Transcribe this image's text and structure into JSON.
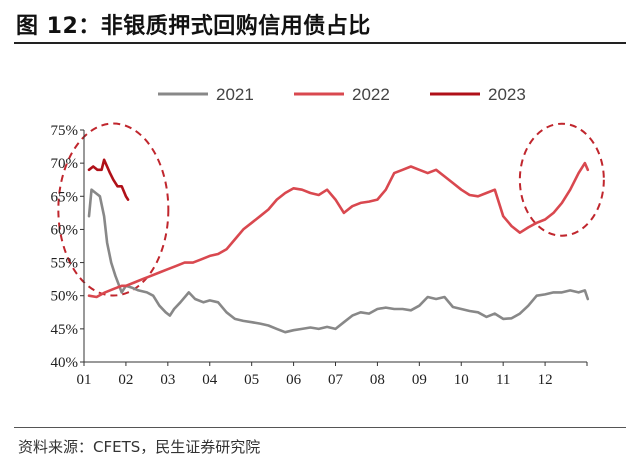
{
  "header": {
    "title": "图 12：非银质押式回购信用债占比"
  },
  "footer": {
    "source": "资料来源：CFETS，民生证券研究院"
  },
  "chart_data": {
    "type": "line",
    "xlabel": "",
    "ylabel": "",
    "x_ticks": [
      "01",
      "02",
      "03",
      "04",
      "05",
      "06",
      "07",
      "08",
      "09",
      "10",
      "11",
      "12"
    ],
    "xlim": [
      1,
      13
    ],
    "ylim": [
      40,
      75
    ],
    "y_ticks": [
      40,
      45,
      50,
      55,
      60,
      65,
      70,
      75
    ],
    "y_tick_suffix": "%",
    "legend_position": "top-center",
    "annotations": [
      "dashed-ellipse-jan-feb",
      "dashed-ellipse-dec"
    ],
    "series": [
      {
        "name": "2021",
        "color": "#888888",
        "x": [
          1.12,
          1.18,
          1.28,
          1.38,
          1.48,
          1.55,
          1.65,
          1.75,
          1.9,
          2.0,
          2.15,
          2.3,
          2.5,
          2.65,
          2.8,
          2.95,
          3.05,
          3.15,
          3.3,
          3.5,
          3.65,
          3.85,
          4.0,
          4.2,
          4.4,
          4.6,
          4.8,
          5.0,
          5.2,
          5.4,
          5.6,
          5.8,
          6.0,
          6.2,
          6.4,
          6.6,
          6.8,
          7.0,
          7.2,
          7.4,
          7.6,
          7.8,
          8.0,
          8.2,
          8.4,
          8.6,
          8.8,
          9.0,
          9.2,
          9.4,
          9.6,
          9.8,
          10.0,
          10.2,
          10.4,
          10.6,
          10.8,
          11.0,
          11.2,
          11.4,
          11.6,
          11.8,
          12.0,
          12.2,
          12.4,
          12.6,
          12.8,
          12.95,
          13.02
        ],
        "values": [
          62,
          66,
          65.5,
          65,
          62,
          58,
          55,
          53,
          50.5,
          51.5,
          51.2,
          50.8,
          50.5,
          50,
          48.5,
          47.5,
          47,
          48,
          49,
          50.5,
          49.5,
          49,
          49.3,
          49,
          47.5,
          46.5,
          46.2,
          46,
          45.8,
          45.5,
          45,
          44.5,
          44.8,
          45,
          45.2,
          45,
          45.3,
          45,
          46,
          47,
          47.5,
          47.3,
          48,
          48.2,
          48,
          48,
          47.8,
          48.5,
          49.8,
          49.5,
          49.8,
          48.3,
          48,
          47.7,
          47.5,
          46.8,
          47.3,
          46.5,
          46.6,
          47.3,
          48.5,
          50,
          50.2,
          50.5,
          50.5,
          50.8,
          50.5,
          50.8,
          49.5
        ]
      },
      {
        "name": "2022",
        "color": "#d9484f",
        "x": [
          1.12,
          1.3,
          1.5,
          1.7,
          1.9,
          2.0,
          2.2,
          2.4,
          2.6,
          2.8,
          3.0,
          3.2,
          3.4,
          3.6,
          3.8,
          4.0,
          4.2,
          4.4,
          4.6,
          4.8,
          5.0,
          5.2,
          5.4,
          5.6,
          5.8,
          6.0,
          6.2,
          6.4,
          6.6,
          6.8,
          7.0,
          7.2,
          7.4,
          7.6,
          7.8,
          8.0,
          8.2,
          8.4,
          8.6,
          8.8,
          9.0,
          9.2,
          9.4,
          9.6,
          9.8,
          10.0,
          10.2,
          10.4,
          10.6,
          10.8,
          11.0,
          11.2,
          11.4,
          11.6,
          11.8,
          12.0,
          12.2,
          12.4,
          12.6,
          12.8,
          12.95,
          13.02
        ],
        "values": [
          50,
          49.8,
          50.5,
          51,
          51.5,
          51.5,
          52,
          52.5,
          53,
          53.5,
          54,
          54.5,
          55,
          55,
          55.5,
          56,
          56.3,
          57,
          58.5,
          60,
          61,
          62,
          63,
          64.5,
          65.5,
          66.2,
          66,
          65.5,
          65.2,
          66,
          64.5,
          62.5,
          63.5,
          64,
          64.2,
          64.5,
          66,
          68.5,
          69,
          69.5,
          69,
          68.5,
          69,
          68,
          67,
          66,
          65.2,
          65,
          65.5,
          66,
          62,
          60.5,
          59.5,
          60.3,
          61,
          61.5,
          62.5,
          64,
          66,
          68.5,
          70,
          69
        ]
      },
      {
        "name": "2023",
        "color": "#b01018",
        "x": [
          1.12,
          1.22,
          1.32,
          1.42,
          1.48,
          1.55,
          1.62,
          1.7,
          1.8,
          1.9,
          2.0,
          2.05
        ],
        "values": [
          69,
          69.5,
          69,
          69,
          70.5,
          69.5,
          68.5,
          67.5,
          66.5,
          66.5,
          65,
          64.5
        ]
      }
    ]
  }
}
